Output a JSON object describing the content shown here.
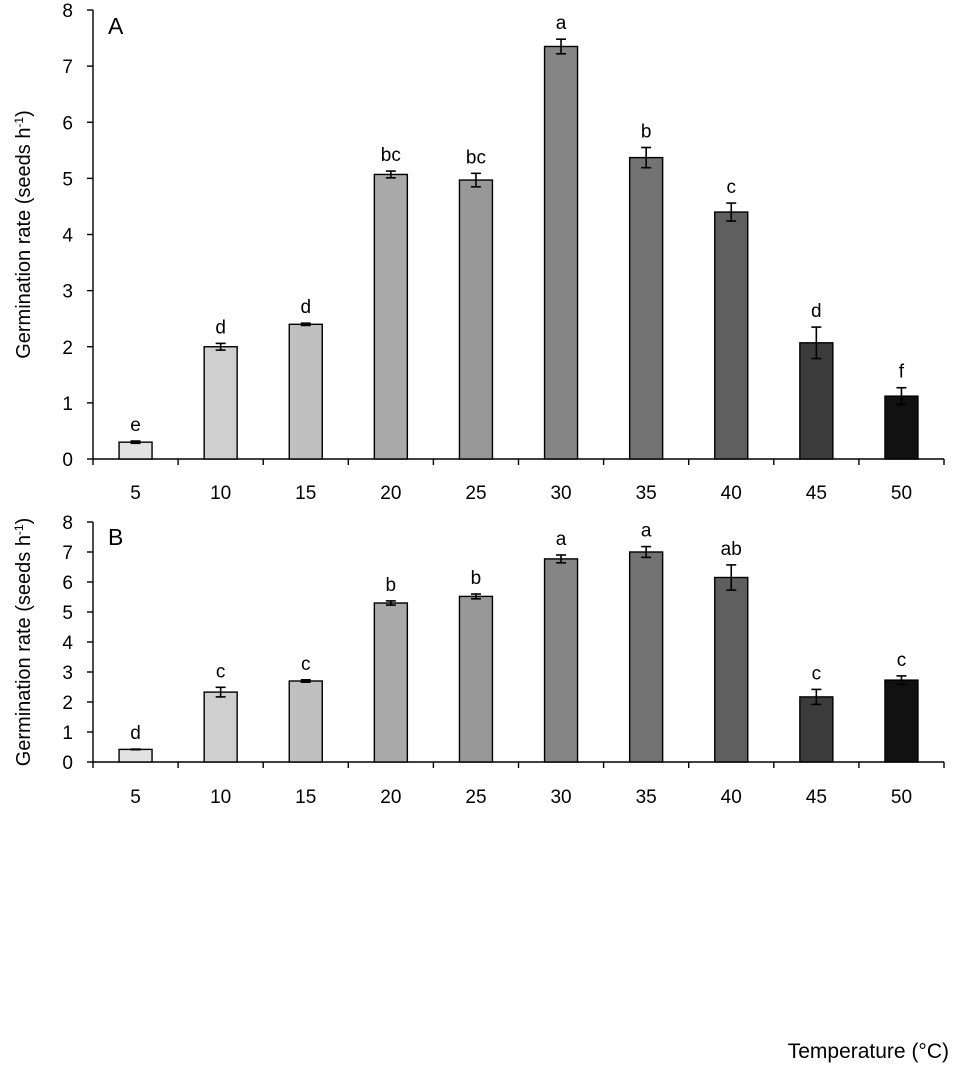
{
  "chart_data": [
    {
      "type": "bar",
      "panel_label": "A",
      "xlabel": "",
      "ylabel": "Germination rate (seeds h",
      "ylabel_sup": "-1",
      "ylabel_close": ")",
      "ylim": [
        0,
        8
      ],
      "yticks": [
        "0",
        "1",
        "2",
        "3",
        "4",
        "5",
        "6",
        "7",
        "8"
      ],
      "categories": [
        "5",
        "10",
        "15",
        "20",
        "25",
        "30",
        "35",
        "40",
        "45",
        "50"
      ],
      "values": [
        0.3,
        2.0,
        2.4,
        5.07,
        4.97,
        7.35,
        5.37,
        4.4,
        2.07,
        1.12
      ],
      "errors": [
        0.02,
        0.06,
        0.02,
        0.06,
        0.12,
        0.13,
        0.18,
        0.16,
        0.28,
        0.15
      ],
      "labels": [
        "e",
        "d",
        "d",
        "bc",
        "bc",
        "a",
        "b",
        "c",
        "d",
        "f"
      ],
      "colors": [
        "#e2e2e2",
        "#cfcfcf",
        "#c0c0c0",
        "#a9a9a9",
        "#989898",
        "#858585",
        "#737373",
        "#5f5f5f",
        "#3b3b3b",
        "#111111"
      ]
    },
    {
      "type": "bar",
      "panel_label": "B",
      "xlabel": "Temperature (°C)",
      "ylabel": "Germination rate (seeds h",
      "ylabel_sup": "-1",
      "ylabel_close": ")",
      "ylim": [
        0,
        8
      ],
      "yticks": [
        "0",
        "1",
        "2",
        "3",
        "4",
        "5",
        "6",
        "7",
        "8"
      ],
      "categories": [
        "5",
        "10",
        "15",
        "20",
        "25",
        "30",
        "35",
        "40",
        "45",
        "50"
      ],
      "values": [
        0.42,
        2.33,
        2.7,
        5.3,
        5.52,
        6.77,
        7.0,
        6.15,
        2.17,
        2.73
      ],
      "errors": [
        0.01,
        0.16,
        0.04,
        0.07,
        0.08,
        0.13,
        0.18,
        0.42,
        0.25,
        0.14
      ],
      "labels": [
        "d",
        "c",
        "c",
        "b",
        "b",
        "a",
        "a",
        "ab",
        "c",
        "c"
      ],
      "colors": [
        "#e2e2e2",
        "#cfcfcf",
        "#c0c0c0",
        "#a9a9a9",
        "#989898",
        "#858585",
        "#737373",
        "#5f5f5f",
        "#3b3b3b",
        "#111111"
      ]
    }
  ]
}
